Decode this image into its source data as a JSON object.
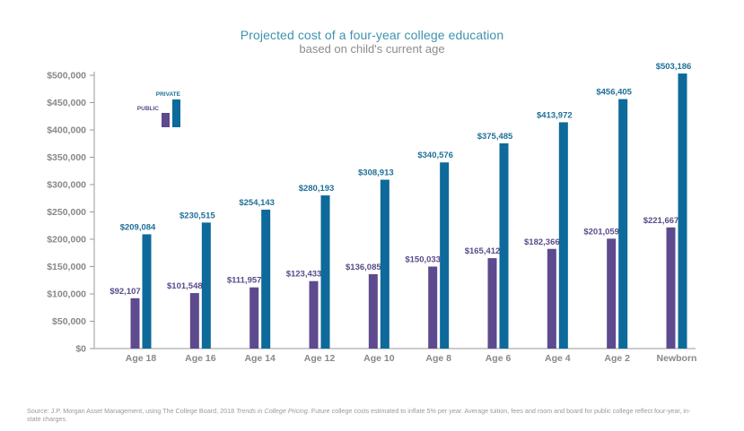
{
  "chart_data": {
    "type": "bar",
    "title": "Projected cost of a four-year college education",
    "subtitle": "based on child's current age",
    "categories": [
      "Age 18",
      "Age 16",
      "Age 14",
      "Age 12",
      "Age 10",
      "Age 8",
      "Age 6",
      "Age 4",
      "Age 2",
      "Newborn"
    ],
    "series": [
      {
        "name": "PUBLIC",
        "color": "#5e4a8e",
        "labelColor": "#5a4a8a",
        "values": [
          92107,
          101548,
          111957,
          123433,
          136085,
          150033,
          165412,
          182366,
          201059,
          221667
        ],
        "labels": [
          "$92,107",
          "$101,548",
          "$111,957",
          "$123,433",
          "$136,085",
          "$150,033",
          "$165,412",
          "$182,366",
          "$201,059",
          "$221,667"
        ]
      },
      {
        "name": "PRIVATE",
        "color": "#0d6a9a",
        "labelColor": "#1f6f99",
        "values": [
          209084,
          230515,
          254143,
          280193,
          308913,
          340576,
          375485,
          413972,
          456405,
          503186
        ],
        "labels": [
          "$209,084",
          "$230,515",
          "$254,143",
          "$280,193",
          "$308,913",
          "$340,576",
          "$375,485",
          "$413,972",
          "$456,405",
          "$503,186"
        ]
      }
    ],
    "ylim": [
      0,
      500000
    ],
    "yticks": [
      0,
      50000,
      100000,
      150000,
      200000,
      250000,
      300000,
      350000,
      400000,
      450000,
      500000
    ],
    "ytick_labels": [
      "$0",
      "$50,000",
      "$100,000",
      "$150,000",
      "$200,000",
      "$250,000",
      "$300,000",
      "$350,000",
      "$400,000",
      "$450,000",
      "$500,000"
    ],
    "legend_position": "top-left",
    "grid": false,
    "xlabel": "",
    "ylabel": ""
  },
  "footnote": {
    "before": "Source: J.P. Morgan Asset Management, using The College Board, 2018 ",
    "italic": "Trends in College Pricing",
    "after": ". Future college costs estimated to inflate 5% per year. Average tuition, fees and room and board for public college reflect four-year, in-state charges."
  }
}
